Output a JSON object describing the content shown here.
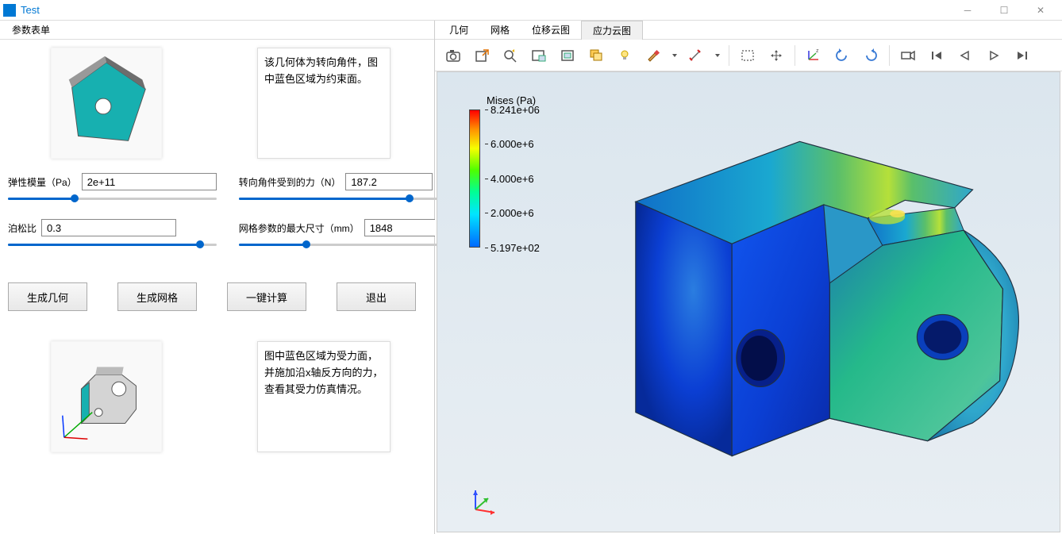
{
  "window": {
    "title": "Test"
  },
  "leftHeader": {
    "tabLabel": "参数表单"
  },
  "thumbnails": {
    "top_bg": "#f8f8f8",
    "top_face_color": "#17b0b0",
    "bottom_bg": "#fafafa",
    "bottom_body_color": "#d4d4d4",
    "bottom_face_color": "#17b0b0"
  },
  "notes": {
    "top": "该几何体为转向角件，图中蓝色区域为约束面。",
    "bottom": "图中蓝色区域为受力面，并施加沿x轴反方向的力，查看其受力仿真情况。"
  },
  "params": {
    "elastic": {
      "label": "弹性模量（Pa）",
      "value": "2e+11",
      "pct": 32
    },
    "force": {
      "label": "转向角件受到的力（N）",
      "value": "187.2",
      "pct": 86
    },
    "poisson": {
      "label": "泊松比",
      "value": "0.3",
      "pct": 92
    },
    "mesh": {
      "label": "网格参数的最大尺寸（mm）",
      "value": "1848",
      "pct": 34
    }
  },
  "buttons": {
    "genGeom": "生成几何",
    "genMesh": "生成网格",
    "calc": "一键计算",
    "exit": "退出"
  },
  "tabs": [
    {
      "id": "geometry",
      "label": "几何",
      "active": false
    },
    {
      "id": "mesh",
      "label": "网格",
      "active": false
    },
    {
      "id": "disp",
      "label": "位移云图",
      "active": false
    },
    {
      "id": "stress",
      "label": "应力云图",
      "active": true
    }
  ],
  "toolbarIcons": [
    "camera",
    "export",
    "zoom",
    "window-select",
    "fit-view",
    "layers",
    "light",
    "brush",
    "dropdown-arrow",
    "measure",
    "dropdown-arrow",
    "sep",
    "box-select",
    "move-all",
    "sep",
    "axis-view",
    "rotate-ccw",
    "rotate-cw",
    "sep",
    "video-cam",
    "prev-frame",
    "play-back",
    "play-fwd",
    "next-frame"
  ],
  "legend": {
    "title": "Mises (Pa)",
    "ticks": [
      "8.241e+06",
      "6.000e+6",
      "4.000e+6",
      "2.000e+6",
      "5.197e+02"
    ],
    "gradient_stops": [
      "#ff0000",
      "#ff9100",
      "#f6ff00",
      "#4eff00",
      "#00ff95",
      "#00e5ff",
      "#0069ff"
    ]
  },
  "viewport": {
    "bg_top": "#dbe6ee",
    "bg_bottom": "#e8eef3",
    "triad_colors": {
      "x": "#ff3030",
      "y": "#30c030",
      "z": "#3050ff"
    }
  },
  "model": {
    "top_face_color": "#158a65",
    "top_face_shade": "#1aa06a",
    "left_face_color": "#0b3fd4",
    "left_face_shade": "#1155ee",
    "left_hole_rim": "#0a2aa8",
    "right_face_color": "#25b98a",
    "right_face_shade": "#1d7fae",
    "curve_color_a": "#2fa7cc",
    "curve_color_b": "#4dc59a",
    "right_hole_rim": "#0a3fbb",
    "hotspot_a": "#b5e03a",
    "hotspot_b": "#ffe24d",
    "edge_color": "#203040"
  }
}
